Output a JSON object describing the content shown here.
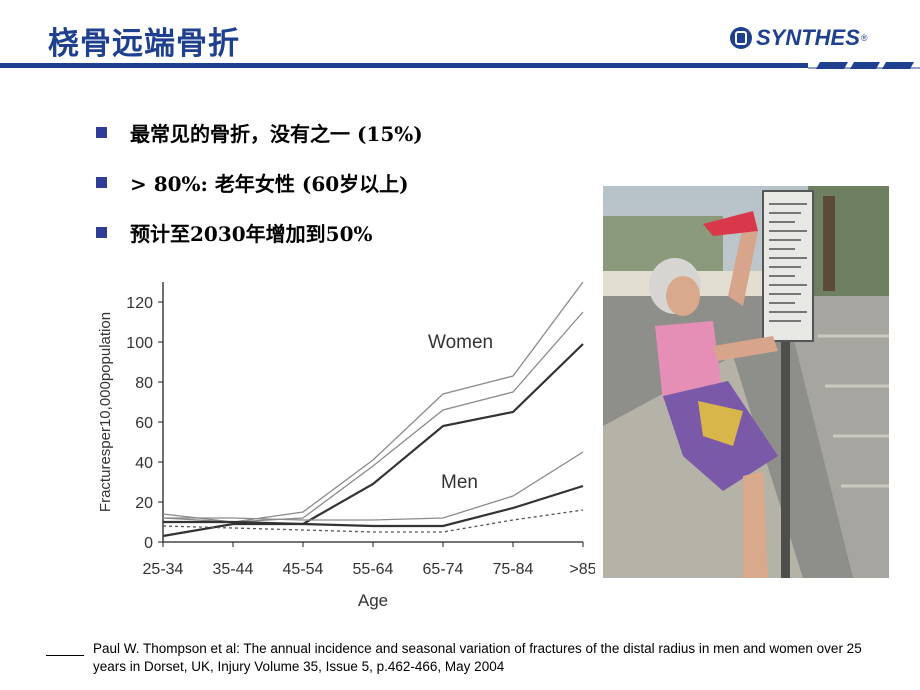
{
  "header": {
    "title": "桡骨远端骨折",
    "logo_text": "SYNTHES",
    "logo_mark": "®"
  },
  "bullets": [
    "最常见的骨折，没有之一 (15%)",
    "> 80%: 老年女性 (60岁以上)",
    "预计至2030年增加到50%"
  ],
  "chart_data": {
    "type": "line",
    "categories": [
      "25-34",
      "35-44",
      "45-54",
      "55-64",
      "65-74",
      "75-84",
      ">85"
    ],
    "xlabel": "Age",
    "ylabel": "Fracturesper10,000population",
    "ylim": [
      0,
      130
    ],
    "yticks": [
      0,
      20,
      40,
      60,
      80,
      100,
      120
    ],
    "annotations": [
      "Women",
      "Men"
    ],
    "series": [
      {
        "group": "women",
        "style": "upper",
        "values": [
          14,
          10,
          15,
          41,
          74,
          83,
          130
        ]
      },
      {
        "group": "women",
        "style": "middle",
        "values": [
          12,
          10,
          12,
          38,
          66,
          75,
          115
        ]
      },
      {
        "group": "women",
        "style": "main",
        "values": [
          3,
          9,
          9,
          29,
          58,
          65,
          99
        ]
      },
      {
        "group": "men",
        "style": "upper",
        "values": [
          12,
          12,
          11,
          11,
          12,
          23,
          45
        ]
      },
      {
        "group": "men",
        "style": "main",
        "values": [
          10,
          10,
          9,
          8,
          8,
          17,
          28
        ]
      },
      {
        "group": "men",
        "style": "dotted",
        "values": [
          8,
          7,
          6,
          5,
          5,
          11,
          16
        ]
      }
    ]
  },
  "photo": {
    "sign_lines": 14
  },
  "reference": "Paul W. Thompson et al: The annual incidence and seasonal variation of fractures of the distal radius in men and women over 25 years in Dorset, UK, Injury Volume 35, Issue 5, p.462-466, May 2004",
  "colors": {
    "title": "#1f3f8f",
    "rule": "#1f3f8f",
    "bullet": "#2e3e96"
  }
}
